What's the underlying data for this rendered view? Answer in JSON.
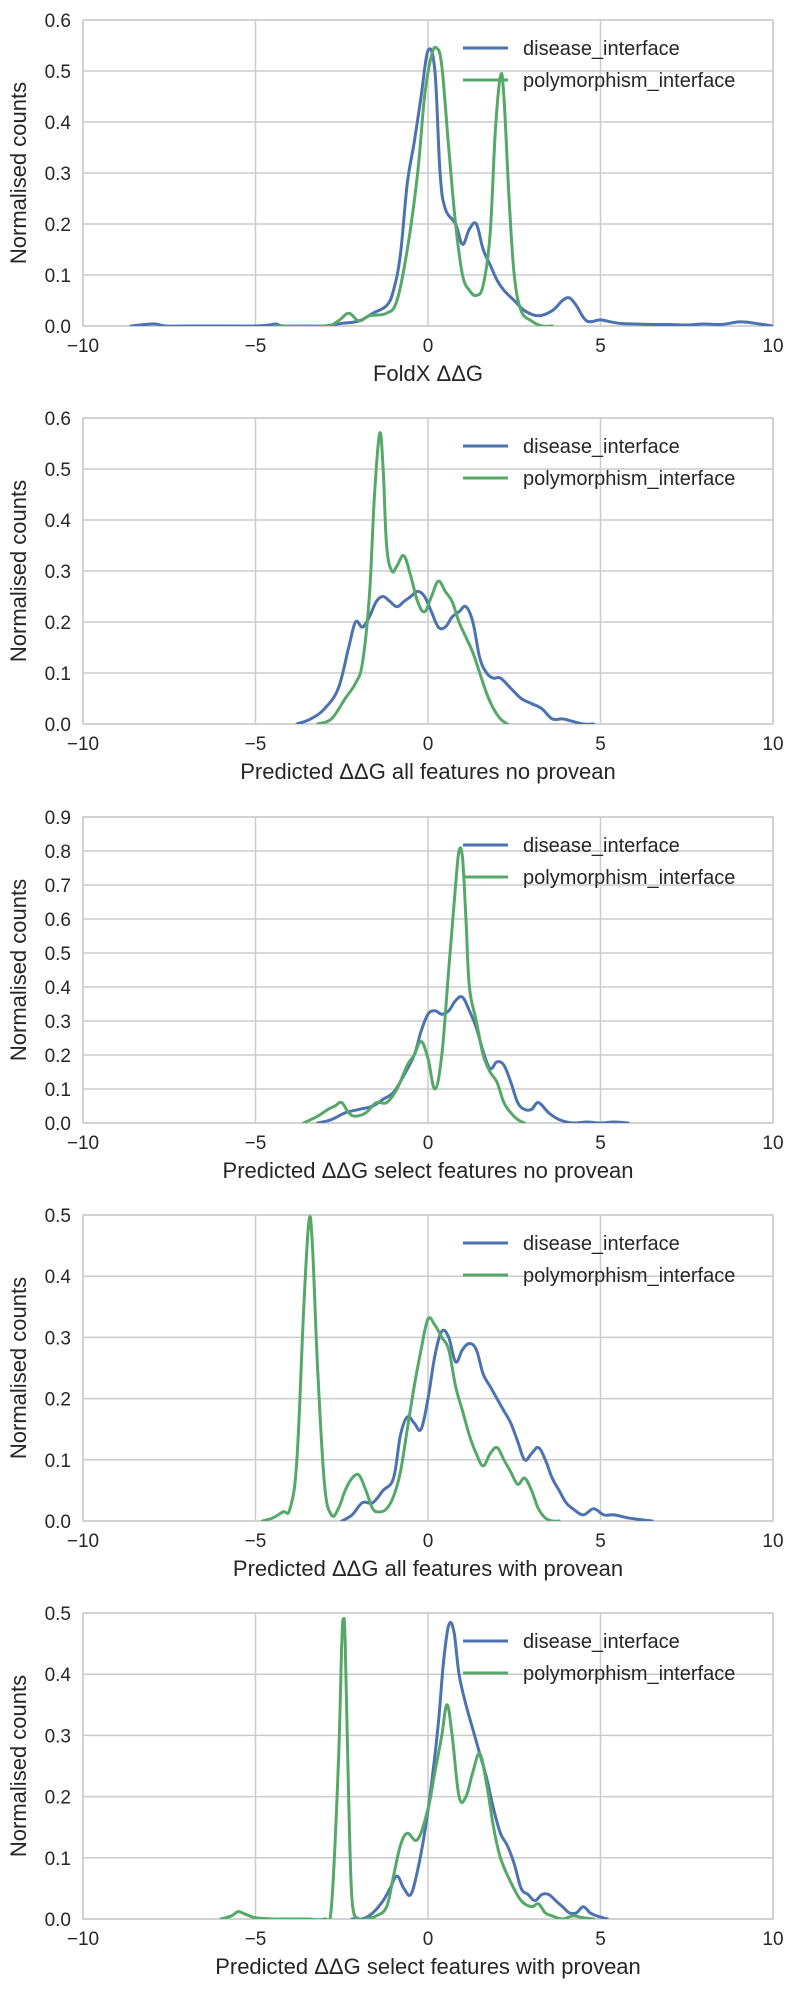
{
  "chart_data": [
    {
      "type": "line",
      "xlabel": "FoldX ΔΔG",
      "ylabel": "Normalised counts",
      "xlim": [
        -10,
        10
      ],
      "ylim": [
        0,
        0.6
      ],
      "xticks": [
        -10,
        -5,
        0,
        5,
        10
      ],
      "yticks": [
        0.0,
        0.1,
        0.2,
        0.3,
        0.4,
        0.5,
        0.6
      ],
      "grid": true,
      "legend_position": "top-right",
      "series": [
        {
          "name": "disease_interface",
          "color": "#4c72b0",
          "x": [
            -8.6,
            -8.2,
            -7.9,
            -7.6,
            -7.0,
            -6.0,
            -5.0,
            -4.6,
            -4.4,
            -4.2,
            -3.5,
            -3.0,
            -2.5,
            -2.0,
            -1.6,
            -1.2,
            -1.0,
            -0.8,
            -0.6,
            -0.4,
            -0.2,
            0.0,
            0.2,
            0.35,
            0.5,
            0.8,
            1.0,
            1.2,
            1.4,
            1.6,
            1.8,
            2.0,
            2.2,
            2.5,
            2.8,
            3.2,
            3.6,
            3.9,
            4.1,
            4.3,
            4.6,
            5.0,
            5.3,
            5.6,
            6.0,
            6.5,
            7.0,
            7.5,
            8.0,
            8.5,
            9.0,
            9.3,
            9.6,
            10.0
          ],
          "y": [
            0.0,
            0.003,
            0.004,
            0.0,
            0.0,
            0.0,
            0.0,
            0.002,
            0.004,
            0.0,
            0.0,
            0.0,
            0.005,
            0.01,
            0.025,
            0.04,
            0.07,
            0.14,
            0.28,
            0.36,
            0.45,
            0.54,
            0.5,
            0.3,
            0.23,
            0.2,
            0.16,
            0.19,
            0.2,
            0.15,
            0.12,
            0.09,
            0.07,
            0.05,
            0.03,
            0.02,
            0.03,
            0.05,
            0.055,
            0.04,
            0.01,
            0.012,
            0.008,
            0.005,
            0.004,
            0.003,
            0.003,
            0.002,
            0.004,
            0.003,
            0.008,
            0.007,
            0.004,
            0.0
          ]
        },
        {
          "name": "polymorphism_interface",
          "color": "#55a868",
          "x": [
            -4.4,
            -3.0,
            -2.6,
            -2.3,
            -2.0,
            -1.7,
            -1.2,
            -0.9,
            -0.6,
            -0.3,
            -0.1,
            0.1,
            0.25,
            0.4,
            0.6,
            0.8,
            1.0,
            1.2,
            1.4,
            1.6,
            1.8,
            1.95,
            2.1,
            2.2,
            2.35,
            2.5,
            2.7,
            3.0,
            3.3,
            3.6
          ],
          "y": [
            0.0,
            0.0,
            0.01,
            0.025,
            0.01,
            0.02,
            0.025,
            0.05,
            0.15,
            0.3,
            0.45,
            0.53,
            0.545,
            0.51,
            0.35,
            0.2,
            0.1,
            0.07,
            0.06,
            0.08,
            0.18,
            0.38,
            0.49,
            0.45,
            0.25,
            0.1,
            0.03,
            0.01,
            0.0,
            0.0
          ]
        }
      ]
    },
    {
      "type": "line",
      "xlabel": "Predicted ΔΔG all features no provean",
      "ylabel": "Normalised counts",
      "xlim": [
        -10,
        10
      ],
      "ylim": [
        0,
        0.6
      ],
      "xticks": [
        -10,
        -5,
        0,
        5,
        10
      ],
      "yticks": [
        0.0,
        0.1,
        0.2,
        0.3,
        0.4,
        0.5,
        0.6
      ],
      "grid": true,
      "legend_position": "top-right",
      "series": [
        {
          "name": "disease_interface",
          "color": "#4c72b0",
          "x": [
            -3.8,
            -3.4,
            -3.0,
            -2.6,
            -2.3,
            -2.1,
            -1.9,
            -1.7,
            -1.5,
            -1.3,
            -1.1,
            -0.9,
            -0.7,
            -0.5,
            -0.3,
            -0.1,
            0.1,
            0.3,
            0.5,
            0.7,
            0.9,
            1.1,
            1.3,
            1.5,
            1.7,
            1.9,
            2.1,
            2.4,
            2.7,
            3.0,
            3.3,
            3.6,
            3.9,
            4.2,
            4.5,
            4.8
          ],
          "y": [
            0.0,
            0.01,
            0.03,
            0.07,
            0.15,
            0.2,
            0.19,
            0.21,
            0.24,
            0.25,
            0.24,
            0.23,
            0.24,
            0.25,
            0.26,
            0.25,
            0.22,
            0.19,
            0.19,
            0.21,
            0.22,
            0.23,
            0.2,
            0.13,
            0.1,
            0.09,
            0.09,
            0.07,
            0.05,
            0.04,
            0.03,
            0.01,
            0.01,
            0.005,
            0.0,
            0.0
          ]
        },
        {
          "name": "polymorphism_interface",
          "color": "#55a868",
          "x": [
            -3.2,
            -2.8,
            -2.4,
            -2.1,
            -1.9,
            -1.7,
            -1.55,
            -1.4,
            -1.3,
            -1.2,
            -1.05,
            -0.9,
            -0.7,
            -0.5,
            -0.3,
            -0.1,
            0.1,
            0.3,
            0.5,
            0.7,
            0.9,
            1.1,
            1.3,
            1.5,
            1.7,
            1.9,
            2.1,
            2.3
          ],
          "y": [
            0.0,
            0.01,
            0.05,
            0.08,
            0.12,
            0.25,
            0.45,
            0.57,
            0.5,
            0.35,
            0.3,
            0.31,
            0.33,
            0.29,
            0.24,
            0.22,
            0.25,
            0.28,
            0.26,
            0.24,
            0.2,
            0.17,
            0.14,
            0.1,
            0.06,
            0.03,
            0.01,
            0.0
          ]
        }
      ]
    },
    {
      "type": "line",
      "xlabel": "Predicted ΔΔG select features no provean",
      "ylabel": "Normalised counts",
      "xlim": [
        -10,
        10
      ],
      "ylim": [
        0,
        0.9
      ],
      "xticks": [
        -10,
        -5,
        0,
        5,
        10
      ],
      "yticks": [
        0.0,
        0.1,
        0.2,
        0.3,
        0.4,
        0.5,
        0.6,
        0.7,
        0.8,
        0.9
      ],
      "grid": true,
      "legend_position": "top-right",
      "series": [
        {
          "name": "disease_interface",
          "color": "#4c72b0",
          "x": [
            -3.2,
            -2.8,
            -2.4,
            -2.0,
            -1.6,
            -1.3,
            -1.0,
            -0.7,
            -0.4,
            -0.2,
            0.0,
            0.2,
            0.4,
            0.6,
            0.8,
            1.0,
            1.2,
            1.4,
            1.6,
            1.8,
            2.0,
            2.2,
            2.4,
            2.6,
            2.8,
            3.0,
            3.2,
            3.5,
            3.8,
            4.2,
            4.6,
            5.0,
            5.4,
            5.8
          ],
          "y": [
            0.0,
            0.01,
            0.03,
            0.04,
            0.05,
            0.07,
            0.09,
            0.14,
            0.2,
            0.27,
            0.32,
            0.33,
            0.32,
            0.33,
            0.36,
            0.37,
            0.33,
            0.28,
            0.21,
            0.16,
            0.18,
            0.17,
            0.12,
            0.06,
            0.04,
            0.04,
            0.06,
            0.03,
            0.01,
            0.0,
            0.003,
            0.0,
            0.003,
            0.0
          ]
        },
        {
          "name": "polymorphism_interface",
          "color": "#55a868",
          "x": [
            -3.6,
            -3.2,
            -2.9,
            -2.7,
            -2.5,
            -2.3,
            -2.1,
            -1.8,
            -1.5,
            -1.2,
            -0.9,
            -0.6,
            -0.4,
            -0.2,
            0.0,
            0.2,
            0.4,
            0.6,
            0.8,
            0.9,
            1.0,
            1.1,
            1.2,
            1.4,
            1.6,
            1.8,
            2.0,
            2.2,
            2.4,
            2.6,
            2.8
          ],
          "y": [
            0.0,
            0.02,
            0.04,
            0.05,
            0.06,
            0.03,
            0.02,
            0.03,
            0.06,
            0.06,
            0.1,
            0.17,
            0.2,
            0.24,
            0.19,
            0.1,
            0.2,
            0.45,
            0.7,
            0.8,
            0.78,
            0.6,
            0.4,
            0.3,
            0.2,
            0.15,
            0.12,
            0.06,
            0.03,
            0.01,
            0.0
          ]
        }
      ]
    },
    {
      "type": "line",
      "xlabel": "Predicted ΔΔG all features with provean",
      "ylabel": "Normalised counts",
      "xlim": [
        -10,
        10
      ],
      "ylim": [
        0,
        0.5
      ],
      "xticks": [
        -10,
        -5,
        0,
        5,
        10
      ],
      "yticks": [
        0.0,
        0.1,
        0.2,
        0.3,
        0.4,
        0.5
      ],
      "grid": true,
      "legend_position": "top-right",
      "series": [
        {
          "name": "disease_interface",
          "color": "#4c72b0",
          "x": [
            -2.5,
            -2.2,
            -1.9,
            -1.6,
            -1.3,
            -1.0,
            -0.8,
            -0.6,
            -0.4,
            -0.2,
            0.0,
            0.2,
            0.4,
            0.6,
            0.8,
            1.0,
            1.2,
            1.4,
            1.6,
            1.8,
            2.0,
            2.2,
            2.4,
            2.6,
            2.8,
            3.0,
            3.2,
            3.4,
            3.6,
            3.8,
            4.0,
            4.2,
            4.5,
            4.8,
            5.1,
            5.4,
            5.8,
            6.2,
            6.5
          ],
          "y": [
            0.0,
            0.01,
            0.03,
            0.03,
            0.05,
            0.07,
            0.14,
            0.17,
            0.16,
            0.15,
            0.2,
            0.27,
            0.31,
            0.3,
            0.26,
            0.28,
            0.29,
            0.28,
            0.24,
            0.22,
            0.2,
            0.18,
            0.16,
            0.13,
            0.1,
            0.11,
            0.12,
            0.1,
            0.07,
            0.05,
            0.03,
            0.02,
            0.01,
            0.02,
            0.01,
            0.01,
            0.005,
            0.002,
            0.0
          ]
        },
        {
          "name": "polymorphism_interface",
          "color": "#55a868",
          "x": [
            -4.8,
            -4.5,
            -4.2,
            -4.0,
            -3.8,
            -3.6,
            -3.45,
            -3.35,
            -3.2,
            -3.0,
            -2.8,
            -2.6,
            -2.4,
            -2.2,
            -2.0,
            -1.8,
            -1.6,
            -1.4,
            -1.2,
            -1.0,
            -0.8,
            -0.6,
            -0.4,
            -0.2,
            0.0,
            0.2,
            0.4,
            0.6,
            0.8,
            1.0,
            1.2,
            1.4,
            1.6,
            1.8,
            2.0,
            2.2,
            2.4,
            2.6,
            2.8,
            3.0,
            3.2,
            3.4,
            3.6,
            3.8
          ],
          "y": [
            0.0,
            0.005,
            0.015,
            0.02,
            0.1,
            0.35,
            0.49,
            0.45,
            0.25,
            0.06,
            0.01,
            0.02,
            0.05,
            0.07,
            0.075,
            0.05,
            0.02,
            0.015,
            0.02,
            0.04,
            0.08,
            0.15,
            0.22,
            0.28,
            0.33,
            0.32,
            0.3,
            0.28,
            0.22,
            0.18,
            0.14,
            0.11,
            0.09,
            0.11,
            0.12,
            0.1,
            0.08,
            0.06,
            0.07,
            0.05,
            0.02,
            0.005,
            0.0,
            0.0
          ]
        }
      ]
    },
    {
      "type": "line",
      "xlabel": "Predicted ΔΔG select features with provean",
      "ylabel": "Normalised counts",
      "xlim": [
        -10,
        10
      ],
      "ylim": [
        0,
        0.5
      ],
      "xticks": [
        -10,
        -5,
        0,
        5,
        10
      ],
      "yticks": [
        0.0,
        0.1,
        0.2,
        0.3,
        0.4,
        0.5
      ],
      "grid": true,
      "legend_position": "top-right",
      "series": [
        {
          "name": "disease_interface",
          "color": "#4c72b0",
          "x": [
            -2.2,
            -1.9,
            -1.6,
            -1.3,
            -1.1,
            -0.9,
            -0.7,
            -0.5,
            -0.3,
            -0.1,
            0.1,
            0.3,
            0.45,
            0.6,
            0.75,
            0.9,
            1.1,
            1.3,
            1.5,
            1.7,
            1.9,
            2.1,
            2.3,
            2.5,
            2.7,
            2.9,
            3.1,
            3.3,
            3.5,
            3.7,
            3.9,
            4.1,
            4.3,
            4.5,
            4.7,
            4.9,
            5.2
          ],
          "y": [
            0.0,
            0.0,
            0.01,
            0.03,
            0.05,
            0.07,
            0.05,
            0.04,
            0.08,
            0.14,
            0.22,
            0.32,
            0.42,
            0.48,
            0.47,
            0.4,
            0.35,
            0.31,
            0.27,
            0.23,
            0.18,
            0.14,
            0.12,
            0.09,
            0.05,
            0.04,
            0.03,
            0.04,
            0.04,
            0.03,
            0.02,
            0.01,
            0.01,
            0.02,
            0.01,
            0.005,
            0.0
          ]
        },
        {
          "name": "polymorphism_interface",
          "color": "#55a868",
          "x": [
            -6.0,
            -5.7,
            -5.5,
            -5.3,
            -5.0,
            -4.5,
            -4.0,
            -3.5,
            -3.0,
            -2.8,
            -2.6,
            -2.5,
            -2.45,
            -2.4,
            -2.3,
            -2.2,
            -2.0,
            -1.8,
            -1.5,
            -1.2,
            -1.0,
            -0.8,
            -0.6,
            -0.3,
            0.0,
            0.2,
            0.4,
            0.55,
            0.7,
            0.9,
            1.1,
            1.3,
            1.5,
            1.7,
            1.9,
            2.1,
            2.4,
            2.7,
            3.0,
            3.2,
            3.4,
            3.6,
            3.9,
            4.2,
            4.5,
            4.8
          ],
          "y": [
            0.0,
            0.005,
            0.012,
            0.008,
            0.002,
            0.0,
            0.0,
            0.0,
            0.0,
            0.02,
            0.25,
            0.45,
            0.49,
            0.45,
            0.2,
            0.03,
            0.0,
            0.0,
            0.005,
            0.02,
            0.07,
            0.12,
            0.14,
            0.13,
            0.18,
            0.24,
            0.3,
            0.35,
            0.3,
            0.2,
            0.2,
            0.24,
            0.27,
            0.22,
            0.15,
            0.1,
            0.06,
            0.03,
            0.02,
            0.025,
            0.01,
            0.005,
            0.0,
            0.005,
            0.002,
            0.0
          ]
        }
      ]
    }
  ]
}
